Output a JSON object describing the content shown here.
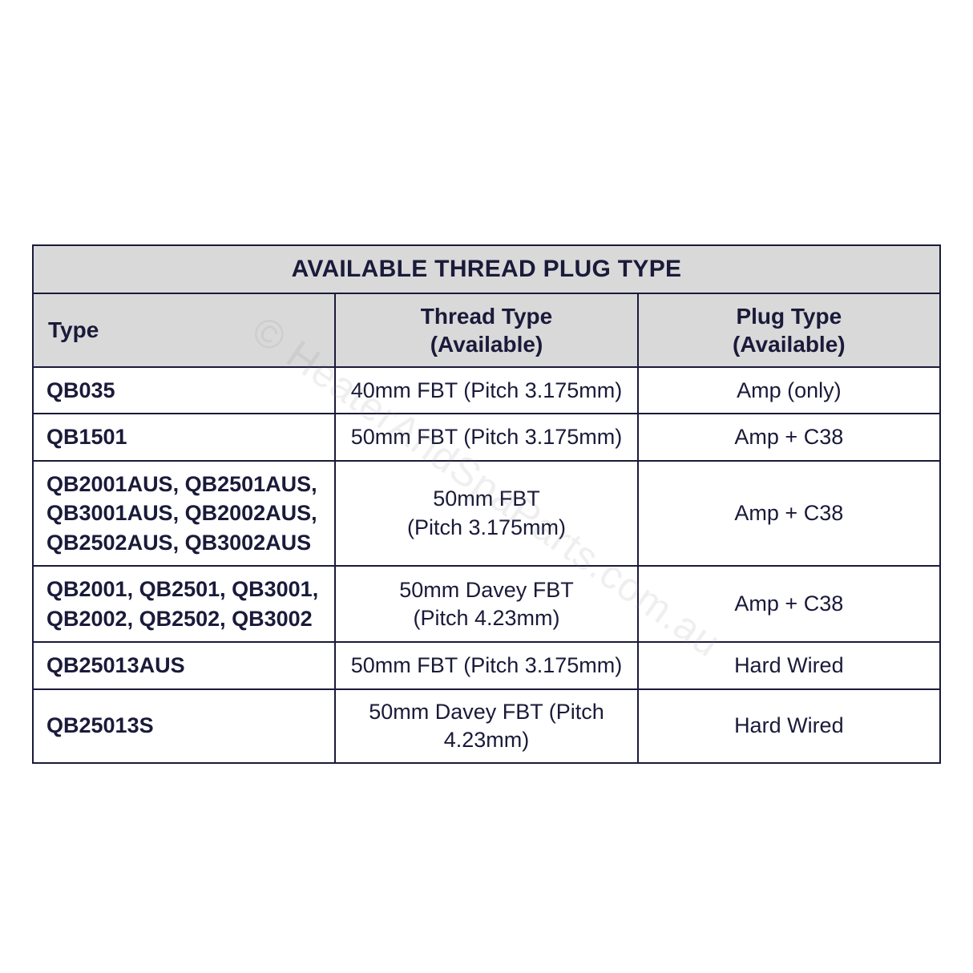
{
  "table": {
    "title": "AVAILABLE THREAD PLUG TYPE",
    "columns": {
      "type": "Type",
      "thread_l1": "Thread Type",
      "thread_l2": "(Available)",
      "plug_l1": "Plug Type",
      "plug_l2": "(Available)"
    },
    "rows": [
      {
        "type": "QB035",
        "thread": "40mm FBT (Pitch 3.175mm)",
        "plug": "Amp (only)"
      },
      {
        "type": "QB1501",
        "thread": "50mm FBT (Pitch 3.175mm)",
        "plug": "Amp + C38"
      },
      {
        "type": "QB2001AUS, QB2501AUS, QB3001AUS, QB2002AUS, QB2502AUS, QB3002AUS",
        "thread_l1": "50mm FBT",
        "thread_l2": "(Pitch 3.175mm)",
        "plug": "Amp + C38"
      },
      {
        "type": "QB2001, QB2501, QB3001, QB2002, QB2502, QB3002",
        "thread_l1": "50mm Davey FBT",
        "thread_l2": "(Pitch 4.23mm)",
        "plug": "Amp + C38"
      },
      {
        "type": "QB25013AUS",
        "thread": "50mm FBT (Pitch 3.175mm)",
        "plug": "Hard Wired"
      },
      {
        "type": "QB25013S",
        "thread": "50mm Davey FBT (Pitch 4.23mm)",
        "plug": "Hard Wired"
      }
    ],
    "colors": {
      "border": "#1a1a3a",
      "header_bg": "#d9d9d9",
      "text": "#1a1a3a",
      "page_bg": "#ffffff",
      "watermark": "rgba(120,120,120,0.12)"
    },
    "font_sizes": {
      "title": 30,
      "header": 28,
      "body": 27
    },
    "column_widths_pct": {
      "type": 38,
      "thread": 40,
      "plug": 22
    }
  },
  "watermark_text": "© HeaterAndSpaParts.com.au"
}
